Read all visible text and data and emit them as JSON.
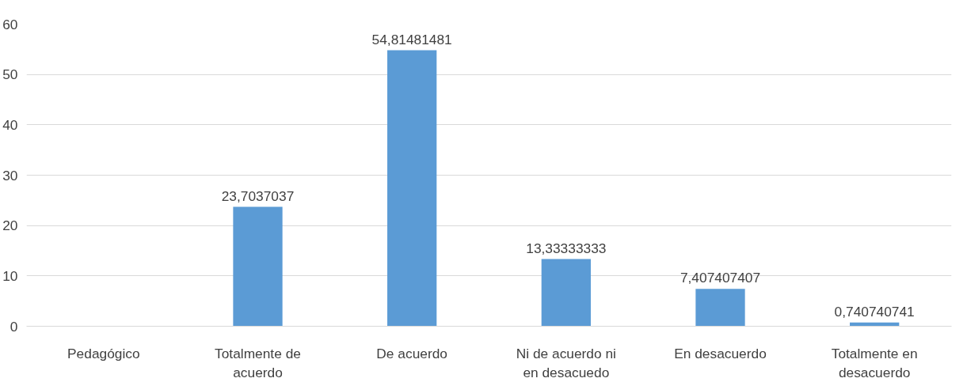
{
  "chart_data": {
    "type": "bar",
    "categories": [
      "Pedagógico",
      "Totalmente de acuerdo",
      "De acuerdo",
      "Ni de acuerdo ni en desacuedo",
      "En desacuerdo",
      "Totalmente en desacuerdo"
    ],
    "values": [
      null,
      23.7037037,
      54.81481481,
      13.33333333,
      7.407407407,
      0.740740741
    ],
    "value_labels": [
      null,
      "23,7037037",
      "54,81481481",
      "13,33333333",
      "7,407407407",
      "0,740740741"
    ],
    "color": "#5b9bd5",
    "ylim": [
      0,
      60
    ],
    "yticks": [
      0,
      10,
      20,
      30,
      40,
      50,
      60
    ],
    "grid": "y"
  }
}
